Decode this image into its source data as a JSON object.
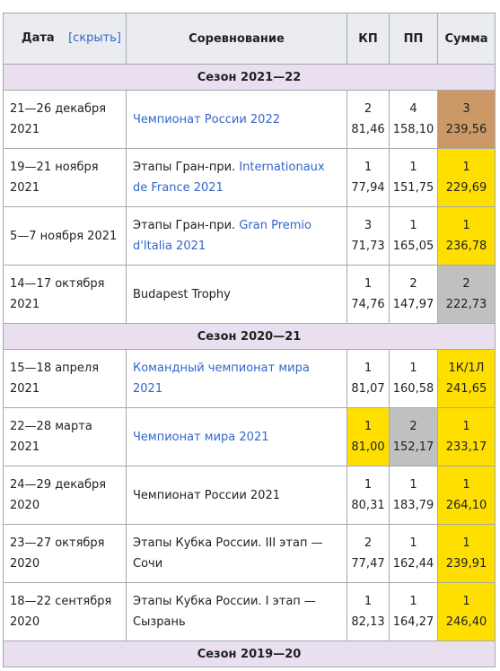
{
  "header": {
    "date": "Дата",
    "hide": "[скрыть]",
    "competition": "Соревнование",
    "sp": "КП",
    "fs": "ПП",
    "total": "Сумма"
  },
  "seasons": [
    {
      "title": "Сезон 2021—22",
      "rows": [
        {
          "date": "21—26 декабря 2021",
          "competition_prefix": "",
          "competition_link": "Чемпионат России 2022",
          "sp_place": "2",
          "sp_score": "81,46",
          "sp_medal": "",
          "fs_place": "4",
          "fs_score": "158,10",
          "fs_medal": "",
          "total_place": "3",
          "total_score": "239,56",
          "total_medal": "bronze"
        },
        {
          "date": "19—21 ноября 2021",
          "competition_prefix": "Этапы Гран-при. ",
          "competition_link": "Internationaux de France 2021",
          "sp_place": "1",
          "sp_score": "77,94",
          "sp_medal": "",
          "fs_place": "1",
          "fs_score": "151,75",
          "fs_medal": "",
          "total_place": "1",
          "total_score": "229,69",
          "total_medal": "gold"
        },
        {
          "date": "5—7 ноября 2021",
          "competition_prefix": "Этапы Гран-при. ",
          "competition_link": "Gran Premio d'Italia 2021",
          "sp_place": "3",
          "sp_score": "71,73",
          "sp_medal": "",
          "fs_place": "1",
          "fs_score": "165,05",
          "fs_medal": "",
          "total_place": "1",
          "total_score": "236,78",
          "total_medal": "gold"
        },
        {
          "date": "14—17 октября 2021",
          "competition_prefix": "Budapest Trophy",
          "competition_link": "",
          "sp_place": "1",
          "sp_score": "74,76",
          "sp_medal": "",
          "fs_place": "2",
          "fs_score": "147,97",
          "fs_medal": "",
          "total_place": "2",
          "total_score": "222,73",
          "total_medal": "silver"
        }
      ]
    },
    {
      "title": "Сезон 2020—21",
      "rows": [
        {
          "date": "15—18 апреля 2021",
          "competition_prefix": "",
          "competition_link": "Командный чемпионат мира 2021",
          "sp_place": "1",
          "sp_score": "81,07",
          "sp_medal": "",
          "fs_place": "1",
          "fs_score": "160,58",
          "fs_medal": "",
          "total_place": "1К/1Л",
          "total_score": "241,65",
          "total_medal": "gold"
        },
        {
          "date": "22—28 марта 2021",
          "competition_prefix": "",
          "competition_link": "Чемпионат мира 2021",
          "sp_place": "1",
          "sp_score": "81,00",
          "sp_medal": "gold",
          "fs_place": "2",
          "fs_score": "152,17",
          "fs_medal": "silver",
          "total_place": "1",
          "total_score": "233,17",
          "total_medal": "gold"
        },
        {
          "date": "24—29 декабря 2020",
          "competition_prefix": "Чемпионат России 2021",
          "competition_link": "",
          "sp_place": "1",
          "sp_score": "80,31",
          "sp_medal": "",
          "fs_place": "1",
          "fs_score": "183,79",
          "fs_medal": "",
          "total_place": "1",
          "total_score": "264,10",
          "total_medal": "gold"
        },
        {
          "date": "23—27 октября 2020",
          "competition_prefix": "Этапы Кубка России. III этап — Сочи",
          "competition_link": "",
          "sp_place": "2",
          "sp_score": "77,47",
          "sp_medal": "",
          "fs_place": "1",
          "fs_score": "162,44",
          "fs_medal": "",
          "total_place": "1",
          "total_score": "239,91",
          "total_medal": "gold"
        },
        {
          "date": "18—22 сентября 2020",
          "competition_prefix": "Этапы Кубка России. I этап — Сызрань",
          "competition_link": "",
          "sp_place": "1",
          "sp_score": "82,13",
          "sp_medal": "",
          "fs_place": "1",
          "fs_score": "164,27",
          "fs_medal": "",
          "total_place": "1",
          "total_score": "246,40",
          "total_medal": "gold"
        }
      ]
    },
    {
      "title": "Сезон 2019—20",
      "rows": []
    }
  ]
}
